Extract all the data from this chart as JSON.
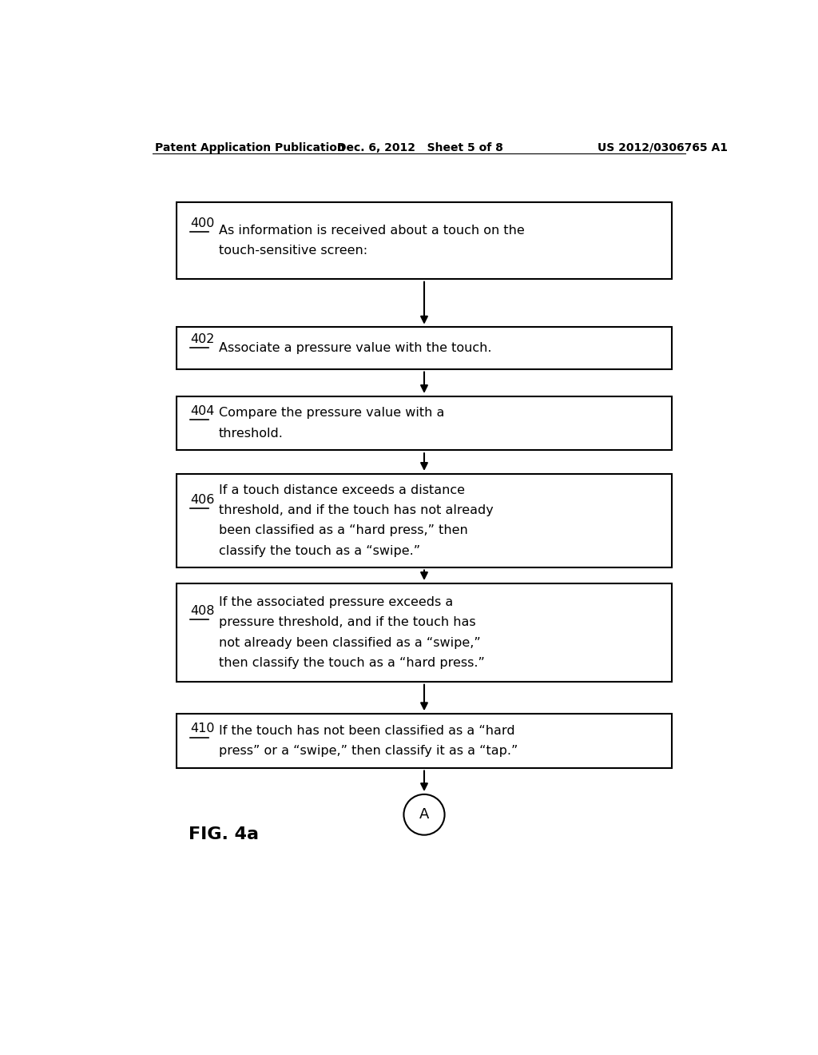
{
  "header_left": "Patent Application Publication",
  "header_mid": "Dec. 6, 2012   Sheet 5 of 8",
  "header_right": "US 2012/0306765 A1",
  "fig_label": "FIG. 4a",
  "connector_label": "A",
  "boxes": [
    {
      "id": "400",
      "lines": [
        "As information is received about a touch on the",
        "touch-sensitive screen:"
      ]
    },
    {
      "id": "402",
      "lines": [
        "Associate a pressure value with the touch."
      ]
    },
    {
      "id": "404",
      "lines": [
        "Compare the pressure value with a",
        "threshold."
      ]
    },
    {
      "id": "406",
      "lines": [
        "If a touch distance exceeds a distance",
        "threshold, and if the touch has not already",
        "been classified as a “hard press,” then",
        "classify the touch as a “swipe.”"
      ]
    },
    {
      "id": "408",
      "lines": [
        "If the associated pressure exceeds a",
        "pressure threshold, and if the touch has",
        "not already been classified as a “swipe,”",
        "then classify the touch as a “hard press.”"
      ]
    },
    {
      "id": "410",
      "lines": [
        "If the touch has not been classified as a “hard",
        "press” or a “swipe,” then classify it as a “tap.”"
      ]
    }
  ],
  "bg_color": "#ffffff",
  "box_edge_color": "#000000",
  "text_color": "#000000",
  "arrow_color": "#000000",
  "font_size": 11.5,
  "id_font_size": 11.5,
  "header_font_size": 10,
  "fig_font_size": 16
}
